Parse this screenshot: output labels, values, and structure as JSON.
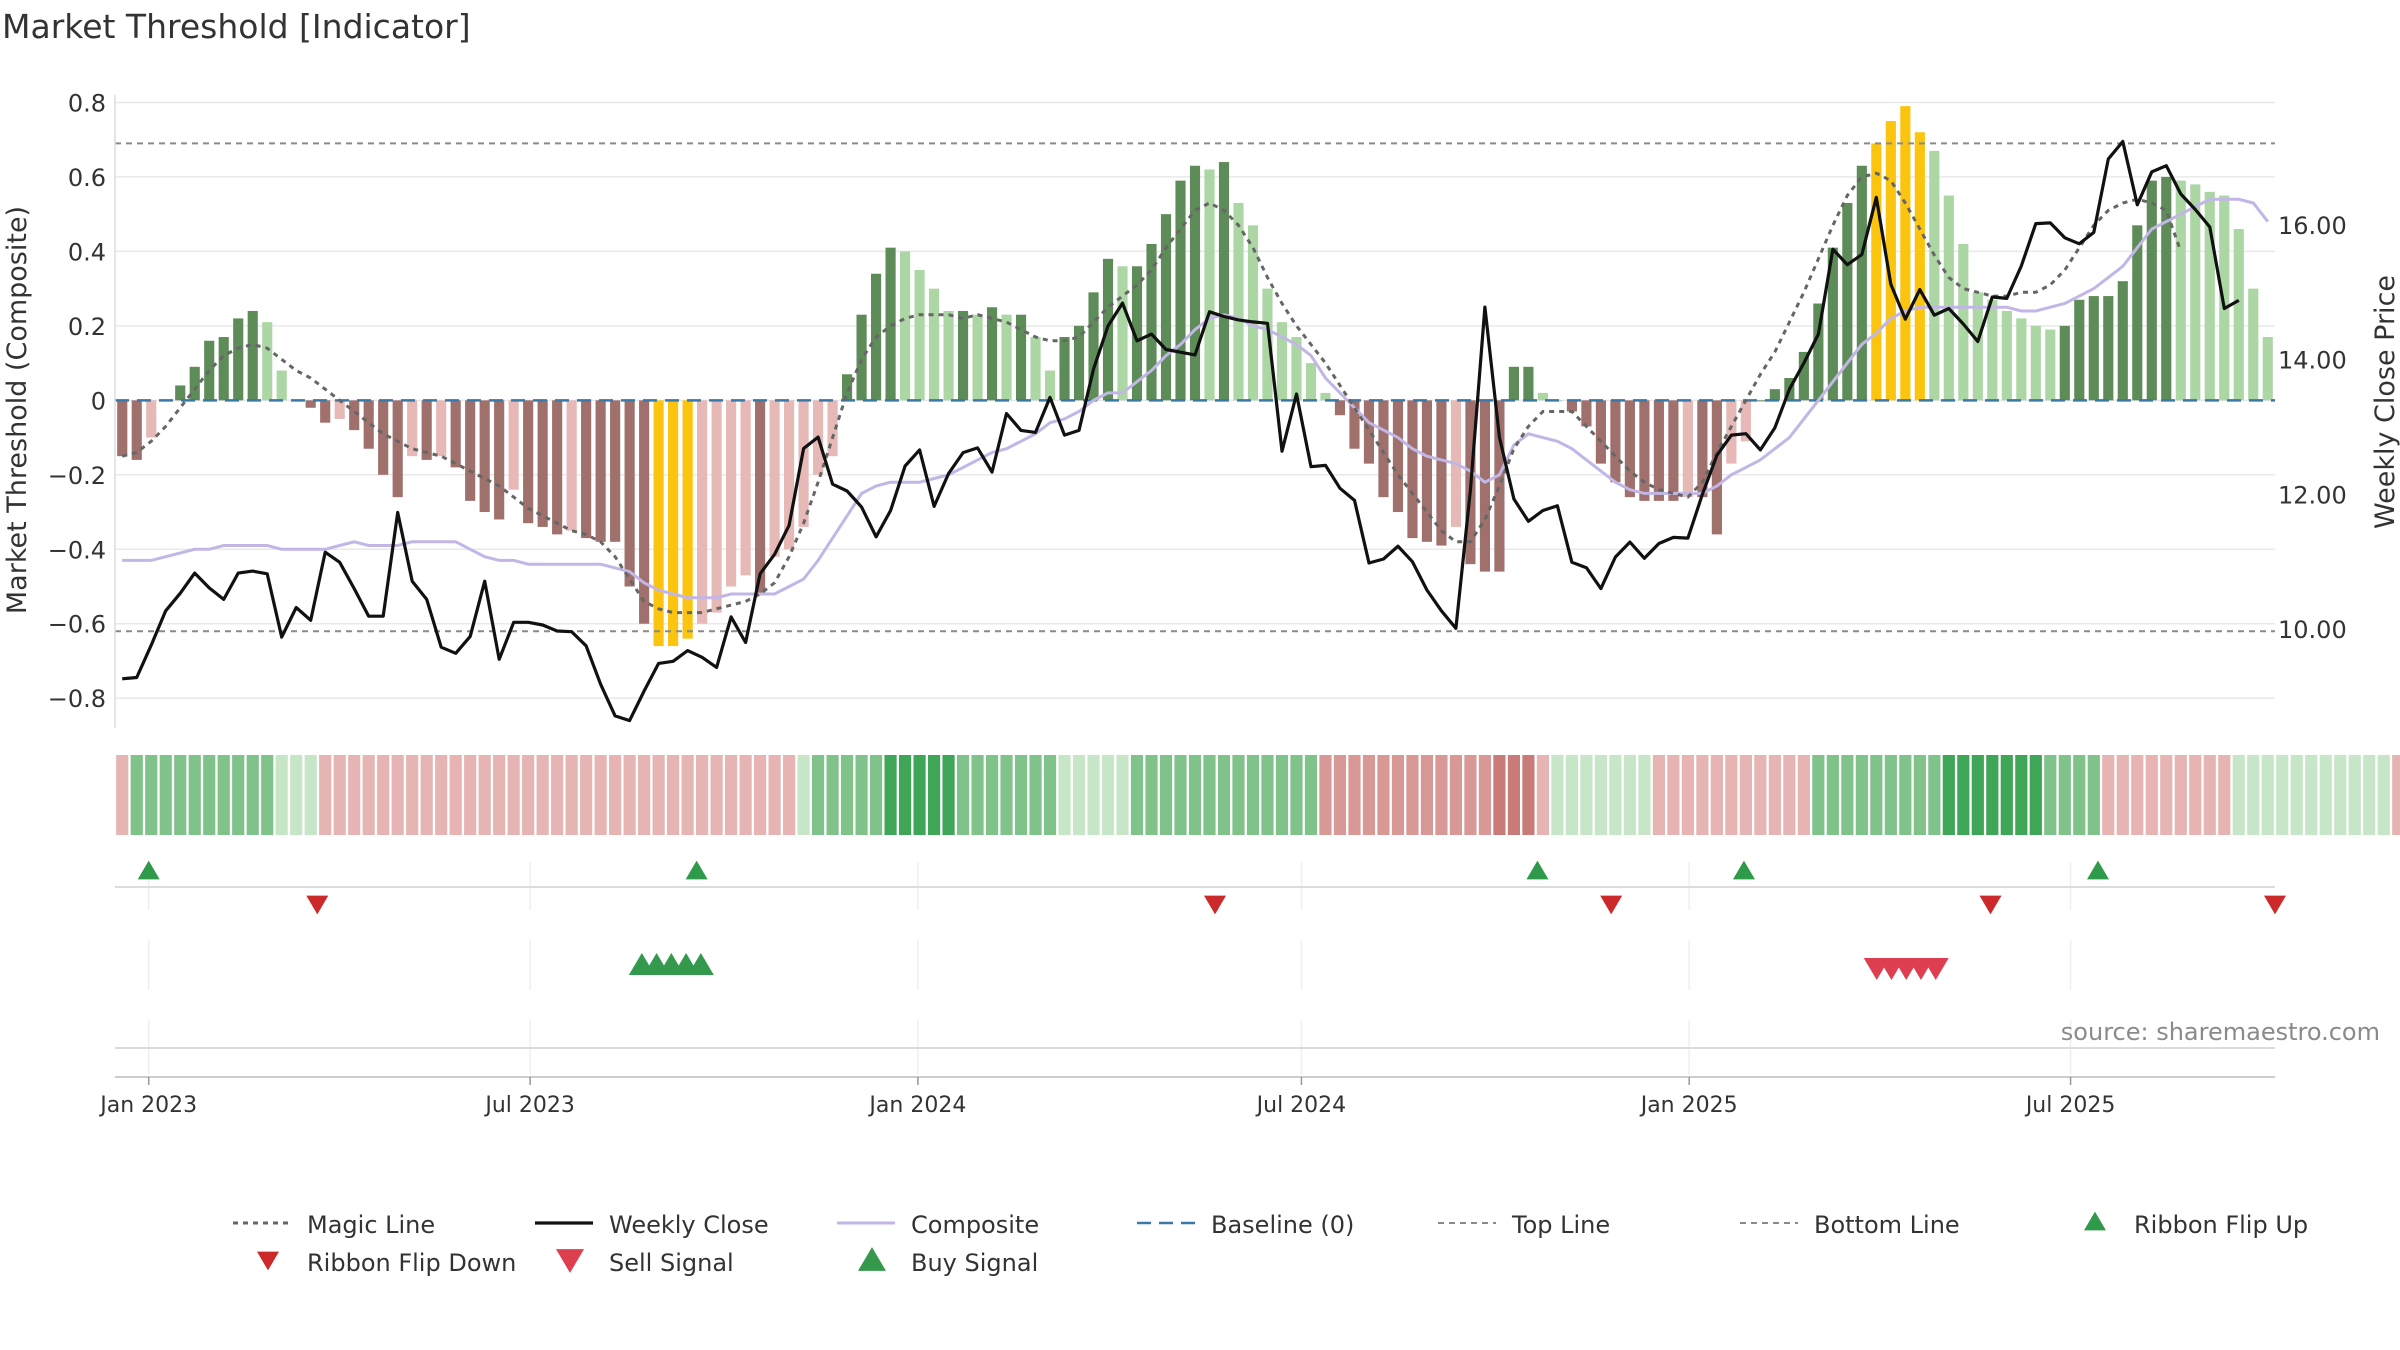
{
  "title": "Market Threshold [Indicator]",
  "source": "source: sharemaestro.com",
  "colors": {
    "bull_strong": "#5e8c58",
    "bull_light": "#acd6a4",
    "bear_strong": "#a0706c",
    "bear_light": "#e6b8b6",
    "extreme": "#fbc40e",
    "magic": "#666666",
    "weekly": "#111111",
    "composite": "#c2b6e6",
    "baseline": "#3a78a8",
    "threshold": "#8a8a8a",
    "flip_up": "#2e9a4a",
    "flip_down": "#cc2a2a",
    "sell": "#dd3f50",
    "buy": "#34994c"
  },
  "chart_data": {
    "type": "bar",
    "title": "Market Threshold [Indicator]",
    "ylabel": "Market Threshold (Composite)",
    "y2label": "Weekly Close Price",
    "ylim": [
      -0.88,
      0.82
    ],
    "y2lim": [
      8.53,
      17.93
    ],
    "yticks": [
      {
        "v": 0.8,
        "label": "0.8"
      },
      {
        "v": 0.6,
        "label": "0.6"
      },
      {
        "v": 0.4,
        "label": "0.4"
      },
      {
        "v": 0.2,
        "label": "0.2"
      },
      {
        "v": 0,
        "label": "0"
      },
      {
        "v": -0.2,
        "label": "−0.2"
      },
      {
        "v": -0.4,
        "label": "−0.4"
      },
      {
        "v": -0.6,
        "label": "−0.6"
      },
      {
        "v": -0.8,
        "label": "−0.8"
      }
    ],
    "y2ticks": [
      {
        "v": 16,
        "label": "16.00"
      },
      {
        "v": 14,
        "label": "14.00"
      },
      {
        "v": 12,
        "label": "12.00"
      },
      {
        "v": 10,
        "label": "10.00"
      }
    ],
    "x_start": "2022-12-16",
    "x_end": "2025-10-06",
    "xticks": [
      {
        "date": "2023-01-01",
        "label": "Jan 2023"
      },
      {
        "date": "2023-07-01",
        "label": "Jul 2023"
      },
      {
        "date": "2024-01-01",
        "label": "Jan 2024"
      },
      {
        "date": "2024-07-01",
        "label": "Jul 2024"
      },
      {
        "date": "2025-01-01",
        "label": "Jan 2025"
      },
      {
        "date": "2025-07-01",
        "label": "Jul 2025"
      }
    ],
    "top_line": 0.69,
    "bottom_line": -0.62,
    "baseline": 0,
    "composite_bars": [
      -0.15,
      -0.16,
      -0.1,
      0.0,
      0.04,
      0.09,
      0.16,
      0.17,
      0.22,
      0.24,
      0.21,
      0.08,
      0.0,
      -0.02,
      -0.06,
      -0.05,
      -0.08,
      -0.13,
      -0.2,
      -0.26,
      -0.15,
      -0.16,
      -0.15,
      -0.18,
      -0.27,
      -0.3,
      -0.32,
      -0.24,
      -0.33,
      -0.34,
      -0.36,
      -0.35,
      -0.37,
      -0.38,
      -0.38,
      -0.5,
      -0.6,
      -0.66,
      -0.66,
      -0.64,
      -0.6,
      -0.57,
      -0.5,
      -0.47,
      -0.52,
      -0.42,
      -0.4,
      -0.34,
      -0.2,
      -0.15,
      0.07,
      0.23,
      0.34,
      0.41,
      0.4,
      0.35,
      0.3,
      0.24,
      0.24,
      0.23,
      0.25,
      0.23,
      0.23,
      0.17,
      0.08,
      0.17,
      0.2,
      0.29,
      0.38,
      0.36,
      0.36,
      0.42,
      0.5,
      0.59,
      0.63,
      0.62,
      0.64,
      0.53,
      0.47,
      0.3,
      0.21,
      0.17,
      0.1,
      0.02,
      -0.04,
      -0.13,
      -0.17,
      -0.26,
      -0.3,
      -0.37,
      -0.38,
      -0.39,
      -0.34,
      -0.44,
      -0.46,
      -0.46,
      0.09,
      0.09,
      0.02,
      0.0,
      -0.03,
      -0.07,
      -0.17,
      -0.22,
      -0.26,
      -0.27,
      -0.27,
      -0.27,
      -0.26,
      -0.26,
      -0.36,
      -0.17,
      -0.11,
      0.0,
      0.03,
      0.06,
      0.13,
      0.26,
      0.41,
      0.53,
      0.63,
      0.69,
      0.75,
      0.79,
      0.72,
      0.67,
      0.55,
      0.42,
      0.29,
      0.27,
      0.24,
      0.22,
      0.2,
      0.19,
      0.2,
      0.27,
      0.28,
      0.28,
      0.32,
      0.47,
      0.59,
      0.6,
      0.59,
      0.58,
      0.56,
      0.55,
      0.46,
      0.3,
      0.17
    ],
    "weekly_close": [
      9.26,
      9.28,
      9.76,
      10.27,
      10.53,
      10.83,
      10.61,
      10.44,
      10.83,
      10.86,
      10.82,
      9.88,
      10.32,
      10.13,
      11.14,
      10.99,
      10.6,
      10.19,
      10.19,
      11.73,
      10.71,
      10.44,
      9.73,
      9.64,
      9.89,
      10.71,
      9.55,
      10.1,
      10.1,
      10.06,
      9.97,
      9.96,
      9.75,
      9.18,
      8.71,
      8.64,
      9.08,
      9.49,
      9.52,
      9.68,
      9.58,
      9.43,
      10.18,
      9.8,
      10.82,
      11.11,
      11.54,
      12.68,
      12.85,
      12.15,
      12.05,
      11.81,
      11.37,
      11.76,
      12.42,
      12.66,
      11.82,
      12.31,
      12.62,
      12.69,
      12.33,
      13.2,
      12.95,
      12.92,
      13.44,
      12.88,
      12.95,
      13.86,
      14.5,
      14.84,
      14.28,
      14.38,
      14.15,
      14.11,
      14.07,
      14.71,
      14.64,
      14.59,
      14.56,
      14.54,
      12.64,
      13.49,
      12.41,
      12.43,
      12.09,
      11.91,
      10.98,
      11.04,
      11.23,
      11.0,
      10.58,
      10.27,
      10.01,
      12.06,
      14.78,
      12.85,
      11.93,
      11.6,
      11.76,
      11.83,
      10.99,
      10.91,
      10.6,
      11.07,
      11.29,
      11.05,
      11.27,
      11.36,
      11.35,
      12.0,
      12.58,
      12.88,
      12.9,
      12.66,
      12.99,
      13.56,
      13.95,
      14.38,
      15.64,
      15.41,
      15.56,
      16.41,
      15.12,
      14.6,
      15.04,
      14.66,
      14.76,
      14.53,
      14.27,
      14.93,
      14.91,
      15.39,
      16.02,
      16.03,
      15.81,
      15.72,
      15.89,
      16.98,
      17.24,
      16.3,
      16.79,
      16.88,
      16.46,
      16.23,
      15.97,
      14.76,
      14.88
    ],
    "magic_line": [
      -0.15,
      -0.14,
      -0.11,
      -0.07,
      -0.02,
      0.03,
      0.08,
      0.12,
      0.14,
      0.15,
      0.14,
      0.11,
      0.08,
      0.06,
      0.03,
      0.0,
      -0.03,
      -0.06,
      -0.09,
      -0.11,
      -0.13,
      -0.14,
      -0.15,
      -0.17,
      -0.19,
      -0.21,
      -0.23,
      -0.26,
      -0.29,
      -0.31,
      -0.33,
      -0.35,
      -0.36,
      -0.38,
      -0.42,
      -0.48,
      -0.54,
      -0.56,
      -0.57,
      -0.57,
      -0.57,
      -0.56,
      -0.55,
      -0.54,
      -0.52,
      -0.49,
      -0.42,
      -0.33,
      -0.22,
      -0.1,
      0.02,
      0.11,
      0.17,
      0.2,
      0.22,
      0.23,
      0.23,
      0.23,
      0.22,
      0.23,
      0.22,
      0.21,
      0.19,
      0.17,
      0.16,
      0.16,
      0.17,
      0.21,
      0.25,
      0.28,
      0.31,
      0.35,
      0.41,
      0.46,
      0.51,
      0.53,
      0.51,
      0.47,
      0.41,
      0.33,
      0.26,
      0.2,
      0.15,
      0.1,
      0.04,
      -0.02,
      -0.08,
      -0.14,
      -0.2,
      -0.25,
      -0.3,
      -0.35,
      -0.38,
      -0.38,
      -0.32,
      -0.23,
      -0.13,
      -0.07,
      -0.03,
      -0.03,
      -0.03,
      -0.07,
      -0.11,
      -0.15,
      -0.19,
      -0.22,
      -0.24,
      -0.25,
      -0.26,
      -0.22,
      -0.14,
      -0.07,
      0.0,
      0.07,
      0.13,
      0.21,
      0.29,
      0.38,
      0.47,
      0.55,
      0.6,
      0.61,
      0.59,
      0.53,
      0.46,
      0.39,
      0.33,
      0.3,
      0.29,
      0.28,
      0.28,
      0.29,
      0.29,
      0.31,
      0.35,
      0.41,
      0.47,
      0.51,
      0.53,
      0.54,
      0.53,
      0.51,
      0.4
    ],
    "composite_line": [
      -0.43,
      -0.43,
      -0.43,
      -0.42,
      -0.41,
      -0.4,
      -0.4,
      -0.39,
      -0.39,
      -0.39,
      -0.39,
      -0.4,
      -0.4,
      -0.4,
      -0.4,
      -0.39,
      -0.38,
      -0.39,
      -0.39,
      -0.39,
      -0.38,
      -0.38,
      -0.38,
      -0.38,
      -0.4,
      -0.42,
      -0.43,
      -0.43,
      -0.44,
      -0.44,
      -0.44,
      -0.44,
      -0.44,
      -0.44,
      -0.45,
      -0.46,
      -0.49,
      -0.51,
      -0.52,
      -0.53,
      -0.53,
      -0.53,
      -0.52,
      -0.52,
      -0.52,
      -0.52,
      -0.5,
      -0.48,
      -0.43,
      -0.37,
      -0.31,
      -0.25,
      -0.23,
      -0.22,
      -0.22,
      -0.22,
      -0.21,
      -0.2,
      -0.18,
      -0.16,
      -0.14,
      -0.13,
      -0.11,
      -0.09,
      -0.06,
      -0.05,
      -0.03,
      0.0,
      0.02,
      0.02,
      0.05,
      0.08,
      0.12,
      0.15,
      0.19,
      0.22,
      0.23,
      0.22,
      0.2,
      0.19,
      0.17,
      0.15,
      0.12,
      0.06,
      0.02,
      -0.02,
      -0.06,
      -0.08,
      -0.1,
      -0.13,
      -0.15,
      -0.16,
      -0.17,
      -0.19,
      -0.22,
      -0.2,
      -0.12,
      -0.09,
      -0.1,
      -0.11,
      -0.13,
      -0.16,
      -0.19,
      -0.22,
      -0.24,
      -0.25,
      -0.25,
      -0.25,
      -0.25,
      -0.25,
      -0.23,
      -0.2,
      -0.18,
      -0.16,
      -0.13,
      -0.1,
      -0.05,
      0.0,
      0.05,
      0.1,
      0.15,
      0.18,
      0.22,
      0.24,
      0.25,
      0.25,
      0.25,
      0.25,
      0.25,
      0.25,
      0.25,
      0.24,
      0.24,
      0.25,
      0.26,
      0.28,
      0.3,
      0.33,
      0.36,
      0.41,
      0.46,
      0.48,
      0.5,
      0.52,
      0.54,
      0.54,
      0.54,
      0.53,
      0.48
    ],
    "ribbon": [
      -1,
      2,
      2,
      2,
      2,
      2,
      2,
      2,
      2,
      2,
      2,
      1,
      1,
      1,
      -1,
      -1,
      -1,
      -1,
      -1,
      -1,
      -1,
      -1,
      -1,
      -1,
      -1,
      -1,
      -1,
      -1,
      -1,
      -1,
      -1,
      -1,
      -1,
      -1,
      -1,
      -1,
      -1,
      -1,
      -1,
      -1,
      -1,
      -1,
      -1,
      -1,
      -1,
      -1,
      -1,
      1,
      2,
      2,
      2,
      2,
      2,
      3,
      3,
      3,
      3,
      3,
      2,
      2,
      2,
      2,
      2,
      2,
      2,
      1,
      1,
      1,
      1,
      1,
      2,
      2,
      2,
      2,
      2,
      2,
      2,
      2,
      2,
      2,
      2,
      2,
      2,
      -2,
      -2,
      -2,
      -2,
      -2,
      -2,
      -2,
      -2,
      -2,
      -2,
      -2,
      -2,
      -3,
      -3,
      -3,
      -1,
      1,
      1,
      1,
      1,
      1,
      1,
      1,
      -1,
      -1,
      -1,
      -1,
      -1,
      -1,
      -1,
      -1,
      -1,
      -1,
      -1,
      2,
      2,
      2,
      2,
      2,
      2,
      2,
      2,
      2,
      3,
      3,
      3,
      3,
      3,
      3,
      3,
      2,
      2,
      2,
      2,
      -1,
      -1,
      -1,
      -1,
      -1,
      -1,
      -1,
      -1,
      -1,
      1,
      1,
      1,
      1,
      1,
      1,
      1,
      1,
      1,
      1,
      1,
      -1
    ],
    "ribbon_flip_up": [
      "2023-01-01",
      "2023-09-18",
      "2024-10-21",
      "2025-01-27",
      "2025-07-14"
    ],
    "ribbon_flip_down": [
      "2023-03-22",
      "2024-05-21",
      "2024-11-25",
      "2025-05-24",
      "2025-10-06"
    ],
    "buy_signals": [
      "2023-08-23",
      "2023-08-30",
      "2023-09-06",
      "2023-09-13",
      "2023-09-20"
    ],
    "sell_signals": [
      "2025-03-31",
      "2025-04-07",
      "2025-04-14",
      "2025-04-21",
      "2025-04-28"
    ],
    "legend": [
      "Magic Line",
      "Weekly Close",
      "Composite",
      "Baseline (0)",
      "Top Line",
      "Bottom Line",
      "Ribbon Flip Up",
      "Ribbon Flip Down",
      "Sell Signal",
      "Buy Signal"
    ],
    "legend_position": "bottom",
    "grid": true
  }
}
